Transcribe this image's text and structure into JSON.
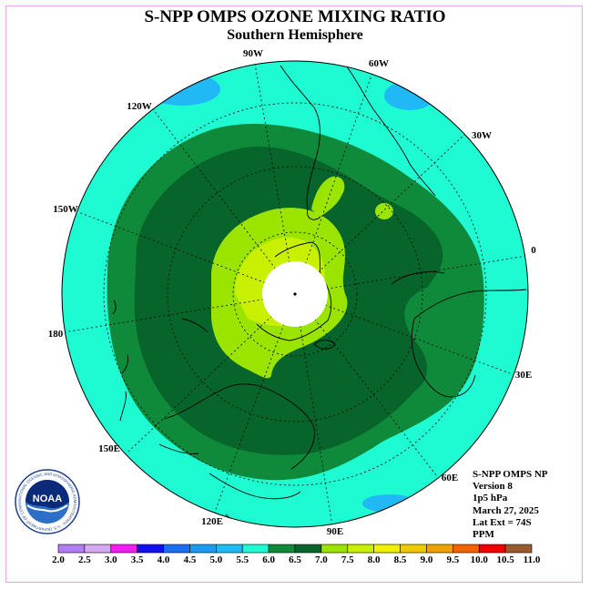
{
  "title": "S-NPP OMPS OZONE MIXING RATIO",
  "subtitle": "Southern Hemisphere",
  "info": {
    "line1": "S-NPP OMPS NP",
    "line2": "Version 8",
    "line3": "1p5 hPa",
    "line4": "March 27, 2025",
    "line5": "Lat Ext = 74S",
    "line6": "PPM"
  },
  "logo": {
    "text": "NOAA",
    "ring_text": "NATIONAL OCEANIC AND ATMOSPHERIC ADMINISTRATION · U.S. DEPARTMENT OF COMMERCE"
  },
  "longitude_labels": [
    {
      "text": "90W"
    },
    {
      "text": "60W"
    },
    {
      "text": "30W"
    },
    {
      "text": "0"
    },
    {
      "text": "30E"
    },
    {
      "text": "60E"
    },
    {
      "text": "90E"
    },
    {
      "text": "120E"
    },
    {
      "text": "150E"
    },
    {
      "text": "180"
    },
    {
      "text": "150W"
    },
    {
      "text": "120W"
    }
  ],
  "colorbar": {
    "bins": [
      {
        "lo": "2.0",
        "color": "#b27cf2"
      },
      {
        "lo": "2.5",
        "color": "#d6a8f2"
      },
      {
        "lo": "3.0",
        "color": "#f01ef0"
      },
      {
        "lo": "3.5",
        "color": "#1010f0"
      },
      {
        "lo": "4.0",
        "color": "#1c6ef0"
      },
      {
        "lo": "4.5",
        "color": "#1c9af0"
      },
      {
        "lo": "5.0",
        "color": "#20b8f5"
      },
      {
        "lo": "5.5",
        "color": "#1efad2"
      },
      {
        "lo": "6.0",
        "color": "#0e8a3a"
      },
      {
        "lo": "6.5",
        "color": "#07642a"
      },
      {
        "lo": "7.0",
        "color": "#9ae400"
      },
      {
        "lo": "7.5",
        "color": "#c8f000"
      },
      {
        "lo": "8.0",
        "color": "#f0f000"
      },
      {
        "lo": "8.5",
        "color": "#f0c800"
      },
      {
        "lo": "9.0",
        "color": "#f0a000"
      },
      {
        "lo": "9.5",
        "color": "#f06400"
      },
      {
        "lo": "10.0",
        "color": "#f00000"
      },
      {
        "lo": "10.5",
        "color": "#9b5a2e"
      }
    ],
    "labels": [
      "2.0",
      "2.5",
      "3.0",
      "3.5",
      "4.0",
      "4.5",
      "5.0",
      "5.5",
      "6.0",
      "6.5",
      "7.0",
      "7.5",
      "8.0",
      "8.5",
      "9.0",
      "9.5",
      "10.0",
      "10.5",
      "11.0"
    ]
  },
  "colors": {
    "cyan": "#1efad2",
    "blue": "#20b8f5",
    "green": "#0e8a3a",
    "darkgreen": "#07642a",
    "lime": "#9ae400",
    "yellowgreen": "#c8f000",
    "frame_border": "#e2a6e2"
  }
}
